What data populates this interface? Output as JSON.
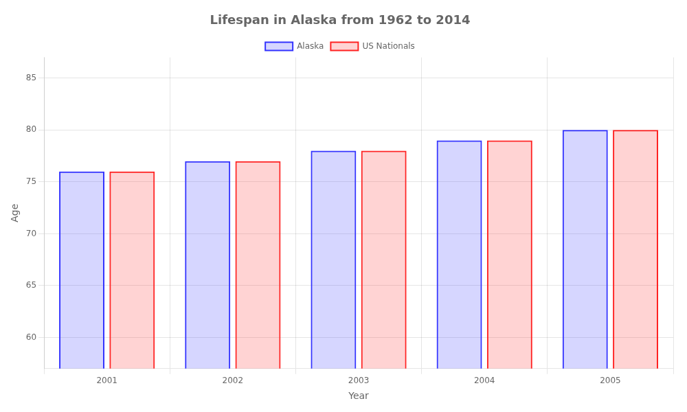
{
  "chart_data": {
    "type": "bar",
    "title": "Lifespan in Alaska from 1962 to 2014",
    "x_label": "Year",
    "y_label": "Age",
    "categories": [
      "2001",
      "2002",
      "2003",
      "2004",
      "2005"
    ],
    "series": [
      {
        "name": "Alaska",
        "color": "#3333ff",
        "values": [
          76,
          77,
          78,
          79,
          80
        ]
      },
      {
        "name": "US Nationals",
        "color": "#ff2222",
        "values": [
          76,
          77,
          78,
          79,
          80
        ]
      }
    ],
    "ylim": [
      57,
      87
    ],
    "yticks": [
      60,
      65,
      70,
      75,
      80,
      85
    ],
    "grid": true,
    "legend": "top"
  }
}
